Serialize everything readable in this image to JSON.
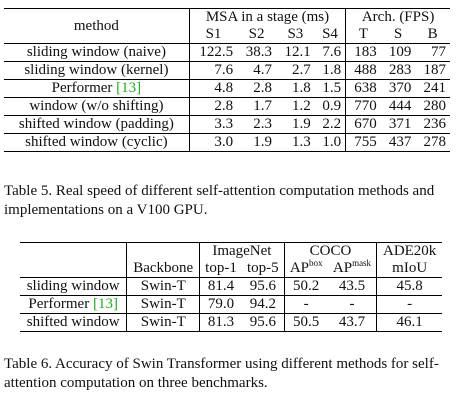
{
  "table5": {
    "header": {
      "method": "method",
      "msa_group": "MSA in a stage (ms)",
      "arch_group": "Arch. (FPS)",
      "msa_cols": [
        "S1",
        "S2",
        "S3",
        "S4"
      ],
      "arch_cols": [
        "T",
        "S",
        "B"
      ]
    },
    "rows": [
      {
        "method": "sliding window (naive)",
        "msa": [
          "122.5",
          "38.3",
          "12.1",
          "7.6"
        ],
        "fps": [
          "183",
          "109",
          "77"
        ]
      },
      {
        "method": "sliding window (kernel)",
        "msa": [
          "7.6",
          "4.7",
          "2.7",
          "1.8"
        ],
        "fps": [
          "488",
          "283",
          "187"
        ]
      },
      {
        "method": "Performer ",
        "cite": "[13]",
        "msa": [
          "4.8",
          "2.8",
          "1.8",
          "1.5"
        ],
        "fps": [
          "638",
          "370",
          "241"
        ]
      },
      {
        "method": "window (w/o shifting)",
        "msa": [
          "2.8",
          "1.7",
          "1.2",
          "0.9"
        ],
        "fps": [
          "770",
          "444",
          "280"
        ]
      },
      {
        "method": "shifted window (padding)",
        "msa": [
          "3.3",
          "2.3",
          "1.9",
          "2.2"
        ],
        "fps": [
          "670",
          "371",
          "236"
        ]
      },
      {
        "method": "shifted window (cyclic)",
        "msa": [
          "3.0",
          "1.9",
          "1.3",
          "1.0"
        ],
        "fps": [
          "755",
          "437",
          "278"
        ]
      }
    ],
    "caption": "Table 5. Real speed of different self-attention computation methods and implementations on a V100 GPU."
  },
  "table6": {
    "header": {
      "imagenet": "ImageNet",
      "coco": "COCO",
      "ade": "ADE20k",
      "backbone": "Backbone",
      "top1": "top-1",
      "top5": "top-5",
      "ap": "AP",
      "ap_box_sup": "box",
      "ap_mask_sup": "mask",
      "miou": "mIoU"
    },
    "rows": [
      {
        "method": "sliding window",
        "backbone": "Swin-T",
        "top1": "81.4",
        "top5": "95.6",
        "apbox": "50.2",
        "apmask": "43.5",
        "miou": "45.8"
      },
      {
        "method": "Performer ",
        "cite": "[13]",
        "backbone": "Swin-T",
        "top1": "79.0",
        "top5": "94.2",
        "apbox": "-",
        "apmask": "-",
        "miou": "-"
      },
      {
        "method": "shifted window",
        "backbone": "Swin-T",
        "top1": "81.3",
        "top5": "95.6",
        "apbox": "50.5",
        "apmask": "43.7",
        "miou": "46.1"
      }
    ],
    "caption": "Table 6. Accuracy of Swin Transformer using different methods for self-attention computation on three benchmarks."
  }
}
